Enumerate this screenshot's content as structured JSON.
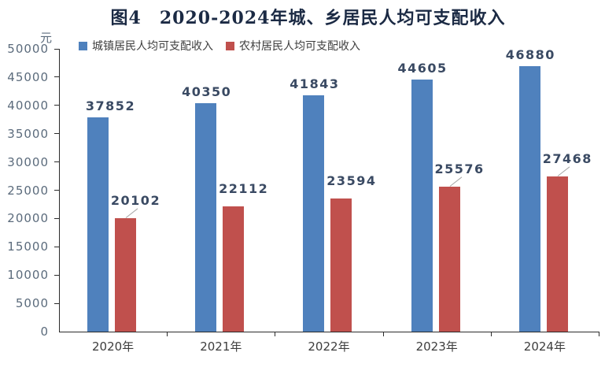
{
  "chart_data": {
    "type": "bar",
    "title": "图4　2020-2024年城、乡居民人均可支配收入",
    "ylabel": "元",
    "categories": [
      "2020年",
      "2021年",
      "2022年",
      "2023年",
      "2024年"
    ],
    "series": [
      {
        "key": "urban",
        "name": "城镇居民人均可支配收入",
        "color": "#4F81BD",
        "values": [
          37852,
          40350,
          41843,
          44605,
          46880
        ]
      },
      {
        "key": "rural",
        "name": "农村居民人均可支配收入",
        "color": "#C0504D",
        "values": [
          20102,
          22112,
          23594,
          25576,
          27468
        ]
      }
    ],
    "ylim": [
      0,
      50000
    ],
    "ytick_step": 5000,
    "ytick_labels": [
      "0",
      "5000",
      "10000",
      "15000",
      "20000",
      "25000",
      "30000",
      "35000",
      "40000",
      "45000",
      "50000"
    ],
    "grid": false,
    "legend_position": "top-left",
    "value_labels_shown": true,
    "callout_leader_points": [
      0,
      3,
      4
    ],
    "colors": {
      "title": "#1b2a44",
      "value_label": "#3a4a63",
      "axis": "#2b2b2b",
      "tick_label": "#5b6b7c",
      "category_label": "#3d3d3d",
      "legend_text": "#3f3f3f",
      "leader_line": "#a6a6a6",
      "background": "#ffffff"
    }
  }
}
